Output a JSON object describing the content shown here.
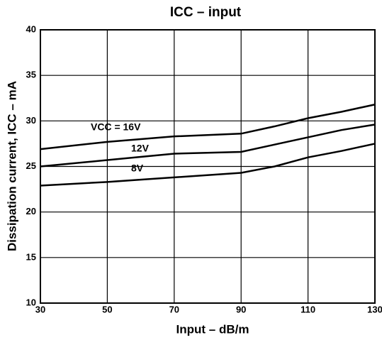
{
  "chart_data": {
    "type": "line",
    "title": "ICC – input",
    "x_label": "Input – dB/m",
    "y_label": "Dissipation current, ICC – mA",
    "x": [
      30,
      50,
      70,
      90,
      100,
      110,
      120,
      130
    ],
    "series": [
      {
        "name": "VCC = 16V",
        "color": "#000000",
        "values": [
          26.9,
          27.7,
          28.3,
          28.6,
          29.4,
          30.3,
          31.0,
          31.8
        ]
      },
      {
        "name": "12V",
        "color": "#000000",
        "values": [
          25.0,
          25.7,
          26.4,
          26.6,
          27.4,
          28.2,
          29.0,
          29.6
        ]
      },
      {
        "name": "8V",
        "color": "#000000",
        "values": [
          22.9,
          23.3,
          23.8,
          24.3,
          25.0,
          26.0,
          26.7,
          27.5
        ]
      }
    ],
    "xlim": [
      30,
      130
    ],
    "xticks": [
      30,
      50,
      70,
      90,
      110,
      130
    ],
    "ylim": [
      10,
      40
    ],
    "yticks": [
      10,
      15,
      20,
      25,
      30,
      35,
      40
    ],
    "grid": true
  }
}
